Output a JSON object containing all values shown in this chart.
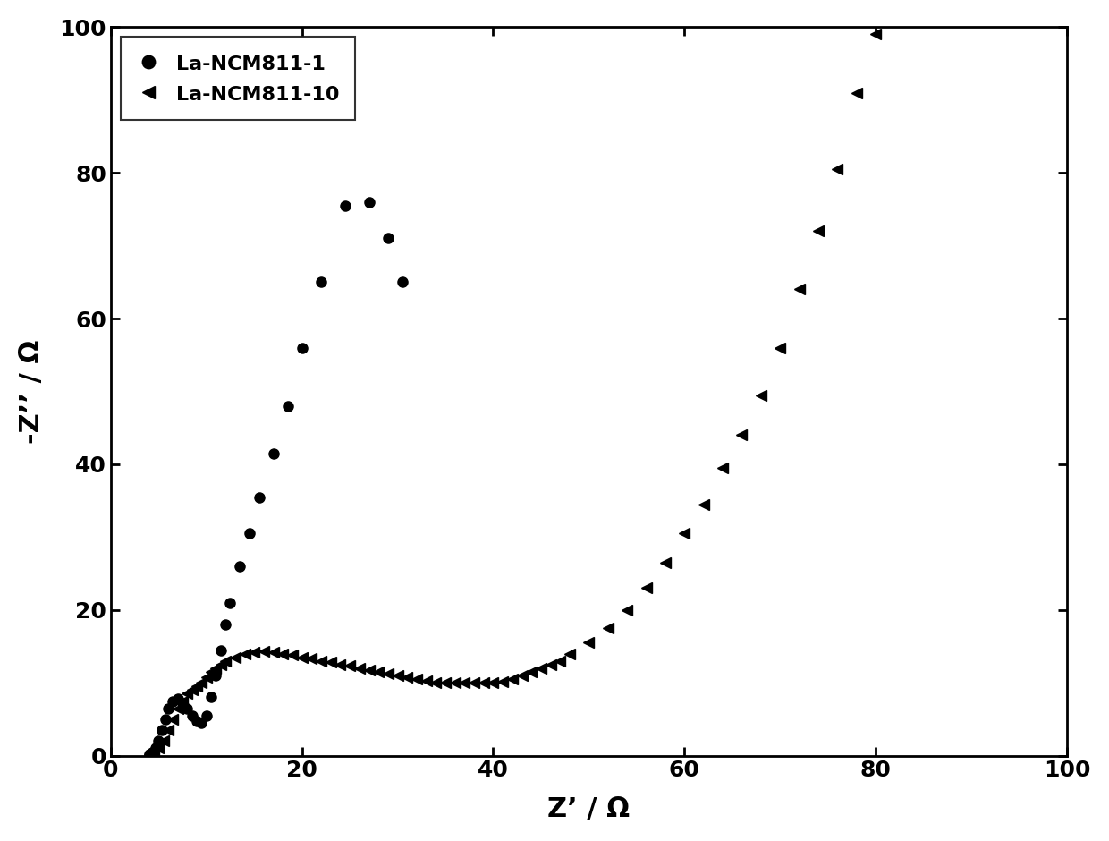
{
  "xlabel": "Z’ / Ω",
  "ylabel": "-Z’’ / Ω",
  "xlim": [
    0,
    100
  ],
  "ylim": [
    0,
    100
  ],
  "xticks": [
    0,
    20,
    40,
    60,
    80,
    100
  ],
  "yticks": [
    0,
    20,
    40,
    60,
    80,
    100
  ],
  "legend_labels": [
    "La-NCM811-1",
    "La-NCM811-10"
  ],
  "background_color": "#ffffff",
  "marker_color": "#000000",
  "series1_x": [
    4.0,
    4.3,
    4.7,
    5.0,
    5.3,
    5.7,
    6.0,
    6.5,
    7.0,
    7.5,
    8.0,
    8.5,
    9.0,
    9.5,
    10.0,
    10.5,
    11.0,
    11.5,
    12.0,
    12.5,
    13.5,
    14.5,
    15.5,
    17.0,
    18.5,
    20.0,
    22.0,
    24.5,
    27.0,
    29.0,
    30.5
  ],
  "series1_y": [
    0.2,
    0.5,
    1.0,
    2.0,
    3.5,
    5.0,
    6.5,
    7.5,
    7.8,
    7.2,
    6.5,
    5.5,
    4.8,
    4.5,
    5.5,
    8.0,
    11.0,
    14.5,
    18.0,
    21.0,
    26.0,
    30.5,
    35.5,
    41.5,
    48.0,
    56.0,
    65.0,
    75.5,
    76.0,
    71.0,
    65.0
  ],
  "series2_x": [
    4.0,
    4.5,
    5.0,
    5.5,
    6.0,
    6.5,
    7.0,
    7.5,
    8.0,
    8.5,
    9.0,
    9.5,
    10.0,
    10.5,
    11.0,
    11.5,
    12.0,
    13.0,
    14.0,
    15.0,
    16.0,
    17.0,
    18.0,
    19.0,
    20.0,
    21.0,
    22.0,
    23.0,
    24.0,
    25.0,
    26.0,
    27.0,
    28.0,
    29.0,
    30.0,
    31.0,
    32.0,
    33.0,
    34.0,
    35.0,
    36.0,
    37.0,
    38.0,
    39.0,
    40.0,
    41.0,
    42.0,
    43.0,
    44.0,
    45.0,
    46.0,
    47.0,
    48.0,
    50.0,
    52.0,
    54.0,
    56.0,
    58.0,
    60.0,
    62.0,
    64.0,
    66.0,
    68.0,
    70.0,
    72.0,
    74.0,
    76.0,
    78.0,
    80.0,
    82.0,
    84.0,
    86.0,
    88.0,
    90.0,
    92.0,
    94.0,
    96.0,
    98.0
  ],
  "series2_y": [
    0.2,
    0.5,
    1.0,
    2.0,
    3.5,
    5.0,
    6.5,
    7.5,
    8.5,
    9.0,
    9.5,
    10.0,
    10.8,
    11.5,
    12.0,
    12.5,
    13.0,
    13.5,
    14.0,
    14.2,
    14.3,
    14.2,
    14.0,
    13.8,
    13.5,
    13.3,
    13.0,
    12.8,
    12.5,
    12.3,
    12.0,
    11.8,
    11.5,
    11.2,
    11.0,
    10.8,
    10.5,
    10.3,
    10.0,
    10.0,
    10.0,
    10.0,
    10.0,
    10.0,
    10.0,
    10.2,
    10.5,
    11.0,
    11.5,
    12.0,
    12.5,
    13.0,
    14.0,
    15.5,
    17.5,
    20.0,
    23.0,
    26.5,
    30.5,
    34.5,
    39.5,
    44.0,
    49.5,
    56.0,
    64.0,
    72.0,
    80.5,
    91.0,
    99.0,
    105.0,
    112.0,
    119.0,
    127.0,
    133.0,
    140.0,
    146.0,
    152.0,
    157.0
  ]
}
